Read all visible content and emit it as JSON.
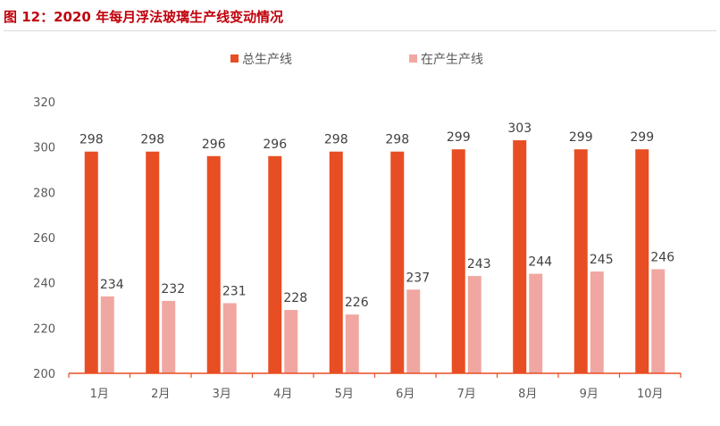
{
  "figure_title": "图 12：2020 年每月浮法玻璃生产线变动情况",
  "colors": {
    "title": "#c0000b",
    "series_total": "#e84e23",
    "series_active": "#f1a7a1",
    "axis": "#e84e23",
    "text": "#595959"
  },
  "chart_data": {
    "type": "bar",
    "title": "",
    "xlabel": "",
    "ylabel": "",
    "categories": [
      "1月",
      "2月",
      "3月",
      "4月",
      "5月",
      "6月",
      "7月",
      "8月",
      "9月",
      "10月"
    ],
    "series": [
      {
        "name": "总生产线",
        "values": [
          298,
          298,
          296,
          296,
          298,
          298,
          299,
          303,
          299,
          299
        ]
      },
      {
        "name": "在产生产线",
        "values": [
          234,
          232,
          231,
          228,
          226,
          237,
          243,
          244,
          245,
          246
        ]
      }
    ],
    "ylim": [
      200,
      320
    ],
    "yticks": [
      200,
      220,
      240,
      260,
      280,
      300,
      320
    ],
    "grid": false,
    "legend_position": "top-center",
    "data_labels": true
  }
}
